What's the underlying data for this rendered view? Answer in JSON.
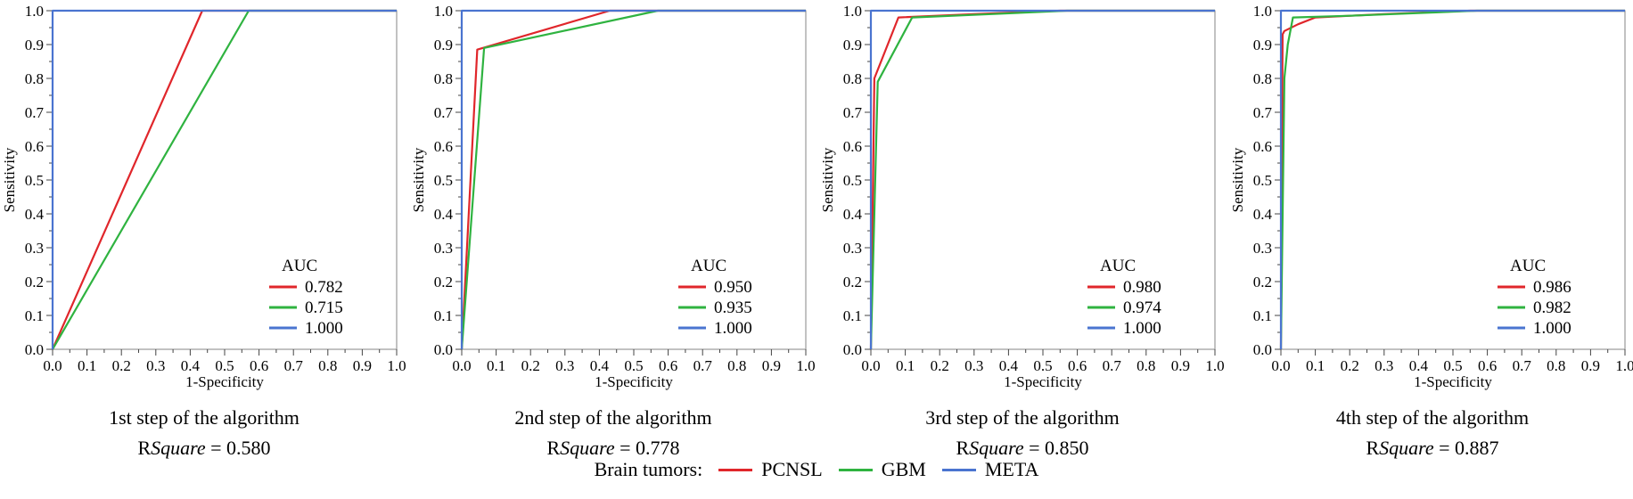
{
  "chart_data": [
    {
      "type": "line",
      "title": "1st step of the algorithm",
      "rsq_prefix": "R",
      "rsq_italic": "Square",
      "rsq_suffix": " = 0.580",
      "xlabel": "1-Specificity",
      "ylabel": "Sensitivity",
      "xlim": [
        0,
        1
      ],
      "ylim": [
        0,
        1
      ],
      "xticks": [
        "0.0",
        "0.1",
        "0.2",
        "0.3",
        "0.4",
        "0.5",
        "0.6",
        "0.7",
        "0.8",
        "0.9",
        "1.0"
      ],
      "yticks": [
        "0.0",
        "0.1",
        "0.2",
        "0.3",
        "0.4",
        "0.5",
        "0.6",
        "0.7",
        "0.8",
        "0.9",
        "1.0"
      ],
      "legend_title": "AUC",
      "series": [
        {
          "name": "PCNSL",
          "auc": "0.782",
          "x": [
            0,
            0.435,
            1.0
          ],
          "y": [
            0,
            1,
            1
          ]
        },
        {
          "name": "GBM",
          "auc": "0.715",
          "x": [
            0,
            0.57,
            1.0
          ],
          "y": [
            0,
            1,
            1
          ]
        },
        {
          "name": "META",
          "auc": "1.000",
          "x": [
            0,
            0,
            1.0
          ],
          "y": [
            0,
            1,
            1
          ]
        }
      ]
    },
    {
      "type": "line",
      "title": "2nd step of the algorithm",
      "rsq_prefix": "R",
      "rsq_italic": "Square",
      "rsq_suffix": " = 0.778",
      "xlabel": "1-Specificity",
      "ylabel": "Sensitivity",
      "xlim": [
        0,
        1
      ],
      "ylim": [
        0,
        1
      ],
      "xticks": [
        "0.0",
        "0.1",
        "0.2",
        "0.3",
        "0.4",
        "0.5",
        "0.6",
        "0.7",
        "0.8",
        "0.9",
        "1.0"
      ],
      "yticks": [
        "0.0",
        "0.1",
        "0.2",
        "0.3",
        "0.4",
        "0.5",
        "0.6",
        "0.7",
        "0.8",
        "0.9",
        "1.0"
      ],
      "legend_title": "AUC",
      "series": [
        {
          "name": "PCNSL",
          "auc": "0.950",
          "x": [
            0,
            0.045,
            0.43,
            1.0
          ],
          "y": [
            0,
            0.885,
            1,
            1
          ]
        },
        {
          "name": "GBM",
          "auc": "0.935",
          "x": [
            0,
            0.065,
            0.57,
            1.0
          ],
          "y": [
            0,
            0.89,
            1,
            1
          ]
        },
        {
          "name": "META",
          "auc": "1.000",
          "x": [
            0,
            0,
            1.0
          ],
          "y": [
            0,
            1,
            1
          ]
        }
      ]
    },
    {
      "type": "line",
      "title": "3rd step of the algorithm",
      "rsq_prefix": "R",
      "rsq_italic": "Square",
      "rsq_suffix": " = 0.850",
      "xlabel": "1-Specificity",
      "ylabel": "Sensitivity",
      "xlim": [
        0,
        1
      ],
      "ylim": [
        0,
        1
      ],
      "xticks": [
        "0.0",
        "0.1",
        "0.2",
        "0.3",
        "0.4",
        "0.5",
        "0.6",
        "0.7",
        "0.8",
        "0.9",
        "1.0"
      ],
      "yticks": [
        "0.0",
        "0.1",
        "0.2",
        "0.3",
        "0.4",
        "0.5",
        "0.6",
        "0.7",
        "0.8",
        "0.9",
        "1.0"
      ],
      "legend_title": "AUC",
      "series": [
        {
          "name": "PCNSL",
          "auc": "0.980",
          "x": [
            0,
            0.01,
            0.08,
            0.3,
            0.55,
            1.0
          ],
          "y": [
            0,
            0.8,
            0.98,
            0.99,
            1,
            1
          ]
        },
        {
          "name": "GBM",
          "auc": "0.974",
          "x": [
            0,
            0.02,
            0.12,
            0.35,
            0.57,
            1.0
          ],
          "y": [
            0,
            0.79,
            0.98,
            0.99,
            1,
            1
          ]
        },
        {
          "name": "META",
          "auc": "1.000",
          "x": [
            0,
            0,
            1.0
          ],
          "y": [
            0,
            1,
            1
          ]
        }
      ]
    },
    {
      "type": "line",
      "title": "4th step of the algorithm",
      "rsq_prefix": "R",
      "rsq_italic": "Square",
      "rsq_suffix": " = 0.887",
      "xlabel": "1-Specificity",
      "ylabel": "Sensitivity",
      "xlim": [
        0,
        1
      ],
      "ylim": [
        0,
        1
      ],
      "xticks": [
        "0.0",
        "0.1",
        "0.2",
        "0.3",
        "0.4",
        "0.5",
        "0.6",
        "0.7",
        "0.8",
        "0.9",
        "1.0"
      ],
      "yticks": [
        "0.0",
        "0.1",
        "0.2",
        "0.3",
        "0.4",
        "0.5",
        "0.6",
        "0.7",
        "0.8",
        "0.9",
        "1.0"
      ],
      "legend_title": "AUC",
      "series": [
        {
          "name": "PCNSL",
          "auc": "0.986",
          "x": [
            0,
            0.005,
            0.01,
            0.05,
            0.1,
            0.3,
            0.55,
            1.0
          ],
          "y": [
            0,
            0.93,
            0.94,
            0.96,
            0.98,
            0.99,
            1,
            1
          ]
        },
        {
          "name": "GBM",
          "auc": "0.982",
          "x": [
            0,
            0.01,
            0.02,
            0.035,
            0.2,
            0.45,
            0.57,
            1.0
          ],
          "y": [
            0,
            0.8,
            0.9,
            0.98,
            0.985,
            0.995,
            1,
            1
          ]
        },
        {
          "name": "META",
          "auc": "1.000",
          "x": [
            0,
            0,
            1.0
          ],
          "y": [
            0,
            1,
            1
          ]
        }
      ]
    }
  ],
  "colors": {
    "PCNSL": "#e0262b",
    "GBM": "#2fb340",
    "META": "#4a74d0",
    "frame": "#9a9a9a"
  },
  "legend": {
    "label": "Brain tumors:",
    "items": [
      {
        "name": "PCNSL",
        "color": "#e0262b"
      },
      {
        "name": "GBM",
        "color": "#2fb340"
      },
      {
        "name": "META",
        "color": "#4a74d0"
      }
    ]
  }
}
